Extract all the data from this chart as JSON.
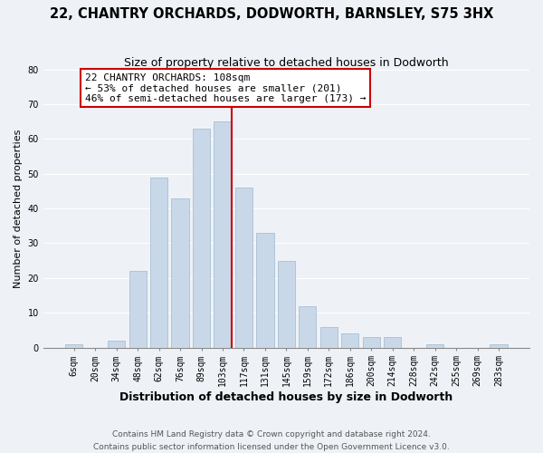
{
  "title": "22, CHANTRY ORCHARDS, DODWORTH, BARNSLEY, S75 3HX",
  "subtitle": "Size of property relative to detached houses in Dodworth",
  "xlabel": "Distribution of detached houses by size in Dodworth",
  "ylabel": "Number of detached properties",
  "categories": [
    "6sqm",
    "20sqm",
    "34sqm",
    "48sqm",
    "62sqm",
    "76sqm",
    "89sqm",
    "103sqm",
    "117sqm",
    "131sqm",
    "145sqm",
    "159sqm",
    "172sqm",
    "186sqm",
    "200sqm",
    "214sqm",
    "228sqm",
    "242sqm",
    "255sqm",
    "269sqm",
    "283sqm"
  ],
  "values": [
    1,
    0,
    2,
    22,
    49,
    43,
    63,
    65,
    46,
    33,
    25,
    12,
    6,
    4,
    3,
    3,
    0,
    1,
    0,
    0,
    1
  ],
  "bar_color": "#c8d8e8",
  "bar_edge_color": "#a0b8cc",
  "highlight_index": 7,
  "highlight_line_color": "#cc0000",
  "annotation_text": "22 CHANTRY ORCHARDS: 108sqm\n← 53% of detached houses are smaller (201)\n46% of semi-detached houses are larger (173) →",
  "annotation_box_color": "#ffffff",
  "annotation_box_edge": "#cc0000",
  "ylim": [
    0,
    80
  ],
  "yticks": [
    0,
    10,
    20,
    30,
    40,
    50,
    60,
    70,
    80
  ],
  "footer1": "Contains HM Land Registry data © Crown copyright and database right 2024.",
  "footer2": "Contains public sector information licensed under the Open Government Licence v3.0.",
  "background_color": "#eef2f7",
  "plot_background": "#eef2f7",
  "grid_color": "#ffffff",
  "title_fontsize": 10.5,
  "subtitle_fontsize": 9,
  "xlabel_fontsize": 9,
  "ylabel_fontsize": 8,
  "tick_fontsize": 7,
  "footer_fontsize": 6.5,
  "annotation_fontsize": 8
}
